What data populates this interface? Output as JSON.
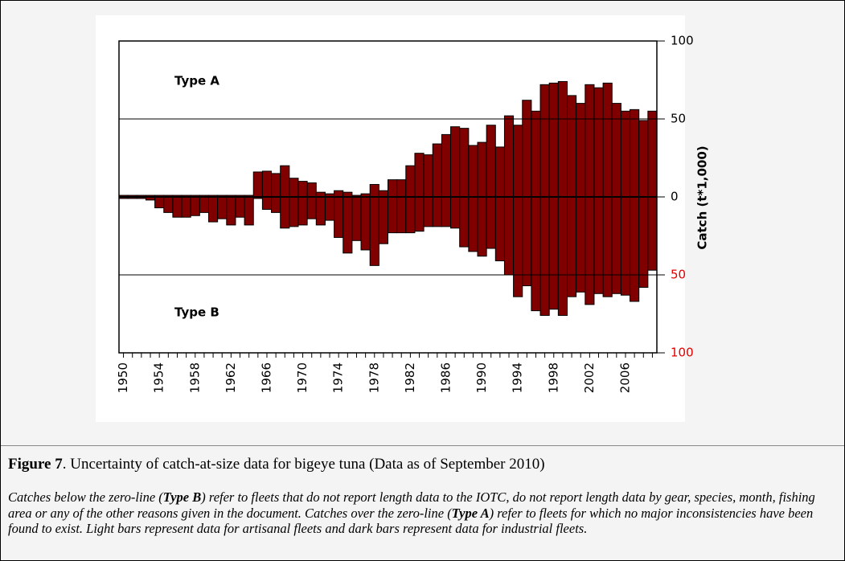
{
  "chart_data": {
    "type": "bar",
    "y_label": "Catch (t*1,000)",
    "annotations": [
      "Type A",
      "Type B"
    ],
    "categories": [
      "1950",
      null,
      null,
      null,
      "1954",
      null,
      null,
      null,
      "1958",
      null,
      null,
      null,
      "1962",
      null,
      null,
      null,
      "1966",
      null,
      null,
      null,
      "1970",
      null,
      null,
      null,
      "1974",
      null,
      null,
      null,
      "1978",
      null,
      null,
      null,
      "1982",
      null,
      null,
      null,
      "1986",
      null,
      null,
      null,
      "1990",
      null,
      null,
      null,
      "1994",
      null,
      null,
      null,
      "1998",
      null,
      null,
      null,
      "2002",
      null,
      null,
      null,
      "2006",
      null,
      null,
      null
    ],
    "series": [
      {
        "color": "#800000",
        "values": [
          1,
          1,
          1,
          1,
          1,
          1,
          1,
          1,
          1,
          1,
          1,
          1,
          1,
          1,
          1,
          16,
          16.5,
          15,
          20,
          12,
          10,
          9,
          3,
          2,
          4,
          3,
          1,
          2,
          8,
          4,
          11,
          11,
          20,
          28,
          27,
          34,
          40,
          45,
          44,
          33,
          35,
          46,
          32,
          52,
          46,
          62,
          55,
          72,
          73,
          74,
          65,
          60,
          72,
          70,
          73,
          60,
          55,
          56,
          49,
          55
        ]
      },
      {
        "color": "#800000",
        "values": [
          -1,
          -1,
          -1,
          -2,
          -7,
          -10,
          -13,
          -13,
          -12,
          -10,
          -16,
          -14,
          -18,
          -13,
          -18,
          -1,
          -8,
          -10,
          -20,
          -19,
          -18,
          -14,
          -18,
          -15,
          -26,
          -36,
          -28,
          -34,
          -44,
          -30,
          -23,
          -23,
          -23,
          -22,
          -19,
          -19,
          -19,
          -20,
          -32,
          -35,
          -38,
          -33,
          -41,
          -50,
          -64,
          -57,
          -73,
          -76,
          -72,
          -76,
          -64,
          -61,
          -69,
          -62,
          -64,
          -62,
          -63,
          -67,
          -58,
          -47
        ]
      }
    ],
    "ylim": [
      -100,
      100
    ],
    "yticks": [
      {
        "value": -100,
        "label": "100"
      },
      {
        "value": -50,
        "label": "50"
      },
      0,
      50,
      100
    ],
    "negative_tick_label_color": "#e00000",
    "grid": true
  },
  "caption": {
    "label": "Figure 7",
    "text": ". Uncertainty of catch-at-size data for bigeye tuna (Data as of September 2010)"
  },
  "note": [
    "Catches below the zero-line (",
    "Type B",
    ") refer to fleets that do not report length data to the IOTC, do not report length data by gear, species, month, fishing area or any of the other reasons given in the document. Catches over the zero-line (",
    "Type A",
    ") refer to fleets for which no major inconsistencies have been found to exist. Light bars represent data for artisanal fleets and dark bars represent data for industrial fleets."
  ]
}
